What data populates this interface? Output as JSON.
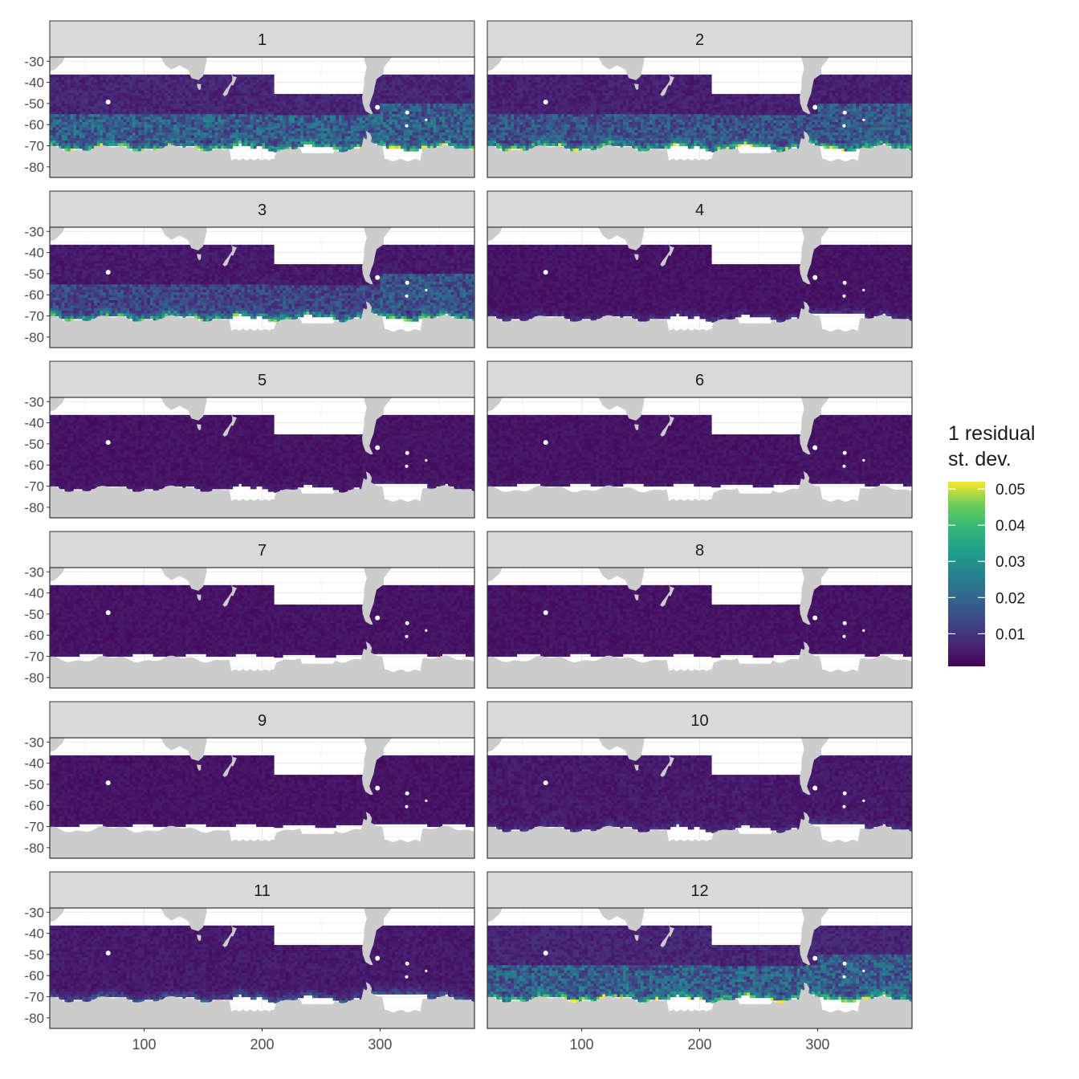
{
  "chart_data": {
    "type": "heatmap",
    "facet_labels": [
      "1",
      "2",
      "3",
      "4",
      "5",
      "6",
      "7",
      "8",
      "9",
      "10",
      "11",
      "12"
    ],
    "x_ticks": [
      "100",
      "200",
      "300"
    ],
    "x_tick_values": [
      100,
      200,
      300
    ],
    "y_ticks": [
      "-30",
      "-40",
      "-50",
      "-60",
      "-70",
      "-80"
    ],
    "y_tick_values": [
      -30,
      -40,
      -50,
      -60,
      -70,
      -80
    ],
    "xlim": [
      20,
      380
    ],
    "ylim": [
      -85,
      -28
    ],
    "legend": {
      "title_line1": "1 residual",
      "title_line2": "st. dev.",
      "labels": [
        "0.05",
        "0.04",
        "0.03",
        "0.02",
        "0.01"
      ],
      "values": [
        0.05,
        0.04,
        0.03,
        0.02,
        0.01
      ],
      "range": [
        0.001,
        0.052
      ],
      "palette": "viridis",
      "position": "right"
    },
    "facet_intensity": [
      {
        "facet": "1",
        "background": 0.007,
        "coastal_peak": 0.05
      },
      {
        "facet": "2",
        "background": 0.006,
        "coastal_peak": 0.05
      },
      {
        "facet": "3",
        "background": 0.005,
        "coastal_peak": 0.045
      },
      {
        "facet": "4",
        "background": 0.004,
        "coastal_peak": 0.012
      },
      {
        "facet": "5",
        "background": 0.004,
        "coastal_peak": 0.008
      },
      {
        "facet": "6",
        "background": 0.004,
        "coastal_peak": 0.007
      },
      {
        "facet": "7",
        "background": 0.004,
        "coastal_peak": 0.006
      },
      {
        "facet": "8",
        "background": 0.004,
        "coastal_peak": 0.006
      },
      {
        "facet": "9",
        "background": 0.004,
        "coastal_peak": 0.006
      },
      {
        "facet": "10",
        "background": 0.005,
        "coastal_peak": 0.012
      },
      {
        "facet": "11",
        "background": 0.005,
        "coastal_peak": 0.02
      },
      {
        "facet": "12",
        "background": 0.007,
        "coastal_peak": 0.05
      }
    ],
    "colors": {
      "land": "#cccccc",
      "strip": "#d9d9d9",
      "border": "#333333",
      "grid": "#ebebeb",
      "low": "#440154",
      "high": "#fde725"
    },
    "grid": true
  }
}
